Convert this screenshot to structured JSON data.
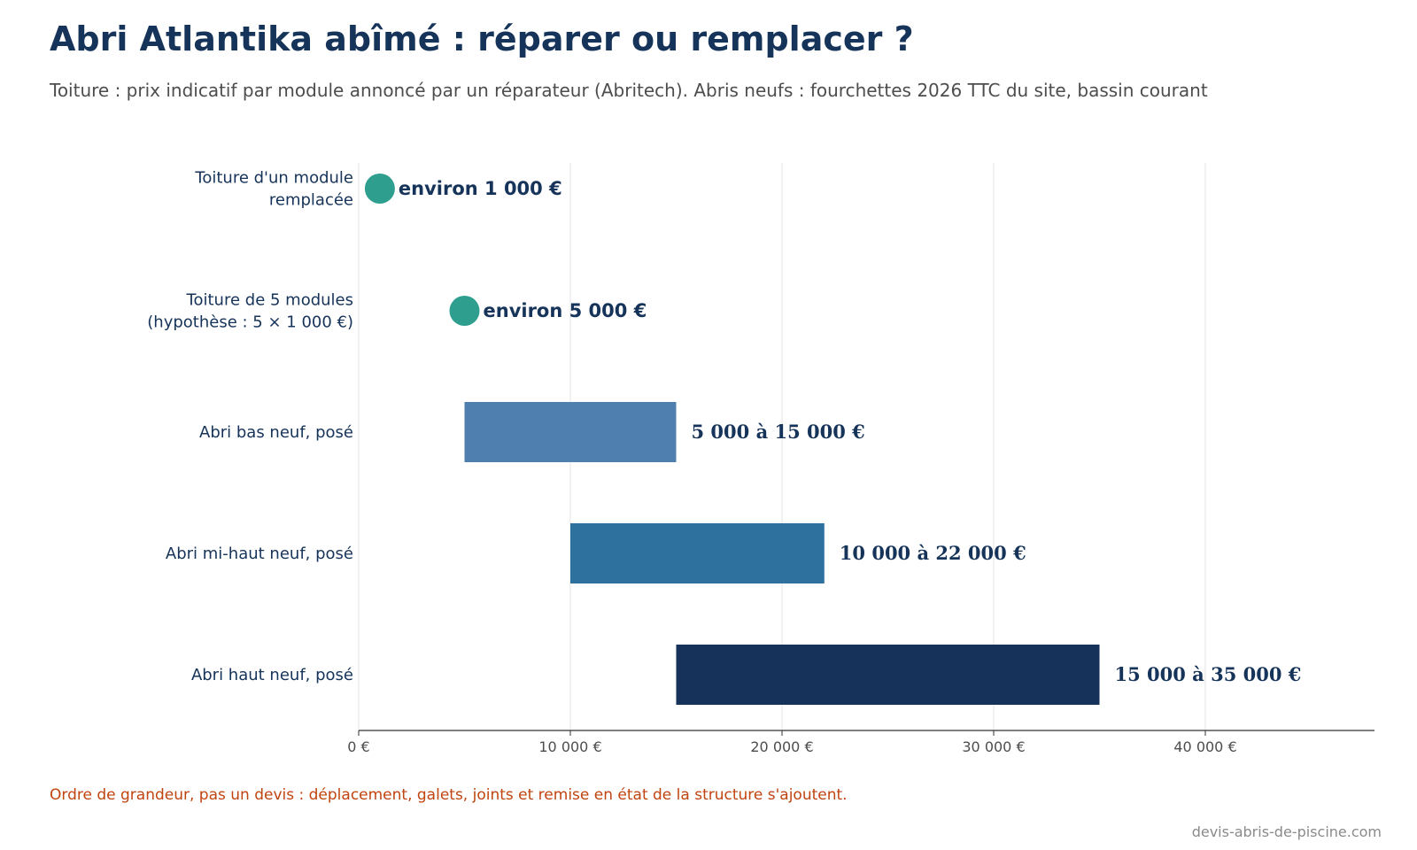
{
  "header": {
    "title": "Abri Atlantika abîmé : réparer ou remplacer ?",
    "subtitle": "Toiture : prix indicatif par module annoncé par un réparateur (Abritech). Abris neufs : fourchettes 2026 TTC du site, bassin courant"
  },
  "footer": {
    "note": "Ordre de grandeur, pas un devis : déplacement, galets, joints et remise en état de la structure s'ajoutent.",
    "source": "devis-abris-de-piscine.com"
  },
  "chart_data": {
    "type": "bar",
    "orientation": "horizontal",
    "xlim": [
      0,
      48000
    ],
    "x_ticks": [
      0,
      10000,
      20000,
      30000,
      40000
    ],
    "x_tick_labels": [
      "0 €",
      "10 000 €",
      "20 000 €",
      "30 000 €",
      "40 000 €"
    ],
    "grid": "vertical",
    "items": [
      {
        "label_lines": [
          "Toiture d'un module",
          "remplacée"
        ],
        "kind": "point",
        "value": 1000,
        "value_label": "environ 1 000 €",
        "color": "#2e9e8e"
      },
      {
        "label_lines": [
          "Toiture de 5 modules",
          "(hypothèse : 5 × 1 000 €)"
        ],
        "kind": "point",
        "value": 5000,
        "value_label": "environ 5 000 €",
        "color": "#2e9e8e"
      },
      {
        "label_lines": [
          "Abri bas neuf, posé"
        ],
        "kind": "range",
        "start": 5000,
        "end": 15000,
        "value_label": "5 000 à 15 000 €",
        "color": "#4f7faf"
      },
      {
        "label_lines": [
          "Abri mi-haut neuf, posé"
        ],
        "kind": "range",
        "start": 10000,
        "end": 22000,
        "value_label": "10 000 à 22 000 €",
        "color": "#2f719e"
      },
      {
        "label_lines": [
          "Abri haut neuf, posé"
        ],
        "kind": "range",
        "start": 15000,
        "end": 35000,
        "value_label": "15 000 à 35 000 €",
        "color": "#16325a"
      }
    ]
  }
}
